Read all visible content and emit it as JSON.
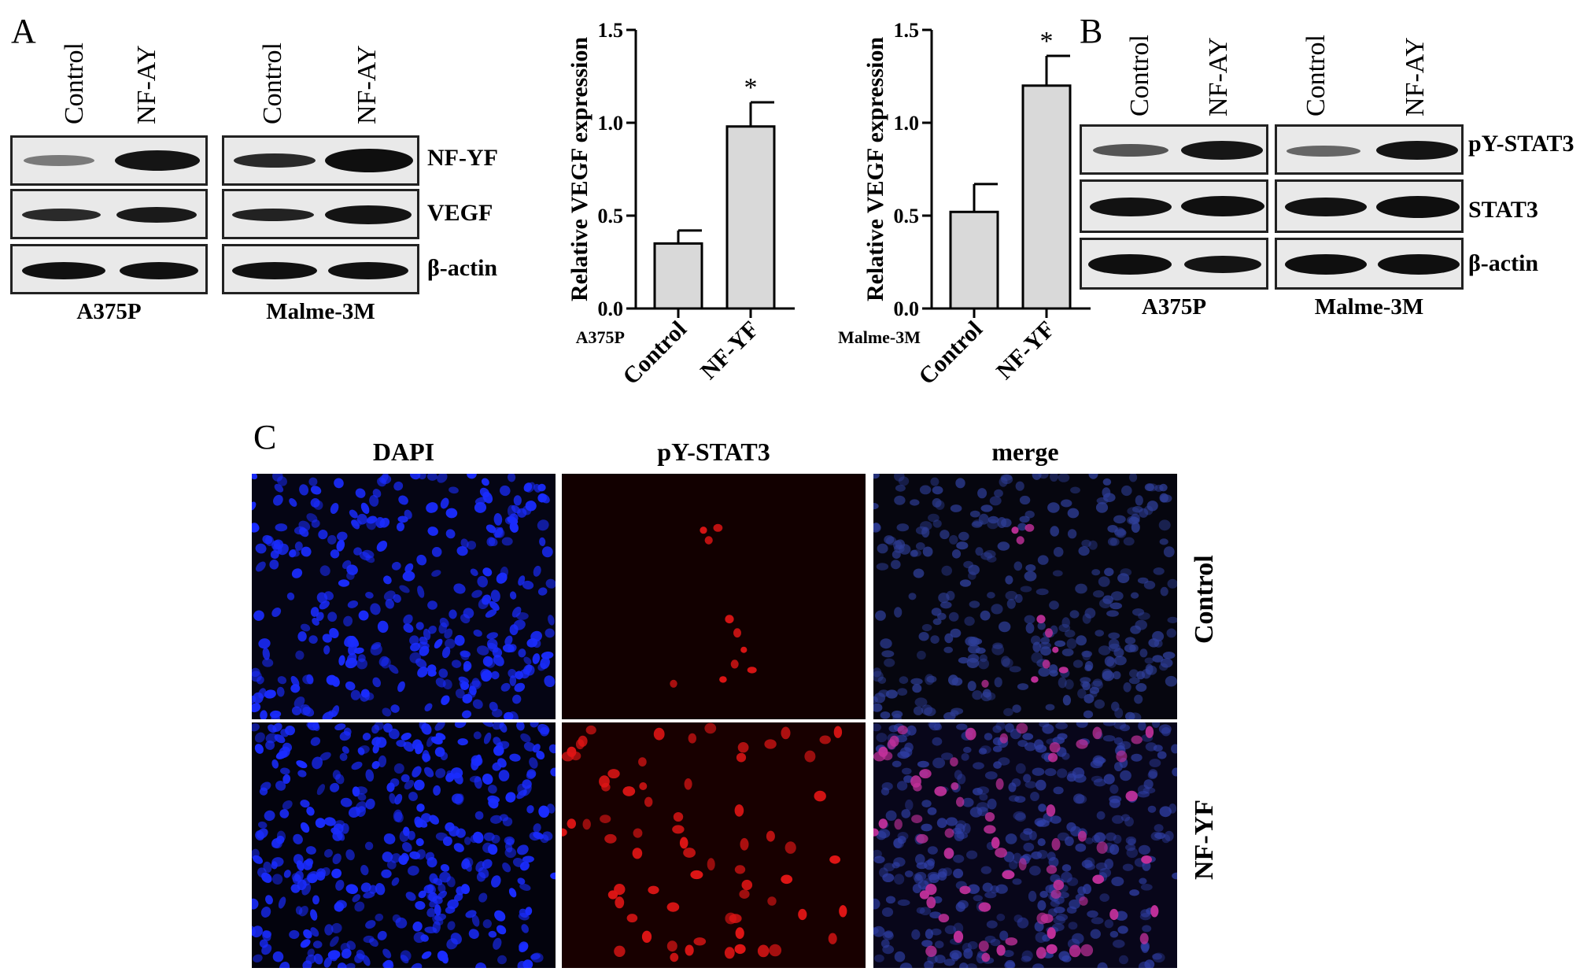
{
  "panels": {
    "a_letter": "A",
    "b_letter": "B",
    "c_letter": "C"
  },
  "blot_a": {
    "left_lanes": [
      "Control",
      "NF-AY"
    ],
    "right_lanes": [
      "Control",
      "NF-AY"
    ],
    "rows": [
      "NF-YF",
      "VEGF",
      "β-actin"
    ],
    "cell_lines": [
      "A375P",
      "Malme-3M"
    ]
  },
  "blot_b": {
    "left_lanes": [
      "Control",
      "NF-AY"
    ],
    "right_lanes": [
      "Control",
      "NF-AY"
    ],
    "rows": [
      "pY-STAT3",
      "STAT3",
      "β-actin"
    ],
    "cell_lines": [
      "A375P",
      "Malme-3M"
    ]
  },
  "chart_data": [
    {
      "type": "bar",
      "corner_label": "A375P",
      "categories": [
        "Control",
        "NF-YF"
      ],
      "values": [
        0.35,
        0.98
      ],
      "errors": [
        0.07,
        0.13
      ],
      "significance": [
        "",
        "*"
      ],
      "ylabel": "Relative VEGF expression",
      "ylim": [
        0,
        1.5
      ],
      "yticks": [
        "0.0",
        "0.5",
        "1.0",
        "1.5"
      ],
      "grid": false
    },
    {
      "type": "bar",
      "corner_label": "Malme-3M",
      "categories": [
        "Control",
        "NF-YF"
      ],
      "values": [
        0.52,
        1.2
      ],
      "errors": [
        0.15,
        0.16
      ],
      "significance": [
        "",
        "*"
      ],
      "ylabel": "Relative VEGF expression",
      "ylim": [
        0,
        1.5
      ],
      "yticks": [
        "0.0",
        "0.5",
        "1.0",
        "1.5"
      ],
      "grid": false
    }
  ],
  "fluorescence": {
    "columns": [
      "DAPI",
      "pY-STAT3",
      "merge"
    ],
    "rows": [
      "Control",
      "NF-YF"
    ]
  },
  "colors": {
    "bar_fill": "#d9d9d9",
    "dapi": "#1a2cff",
    "pystat3": "#e01515",
    "merge_nuclei": "#c0309a"
  }
}
